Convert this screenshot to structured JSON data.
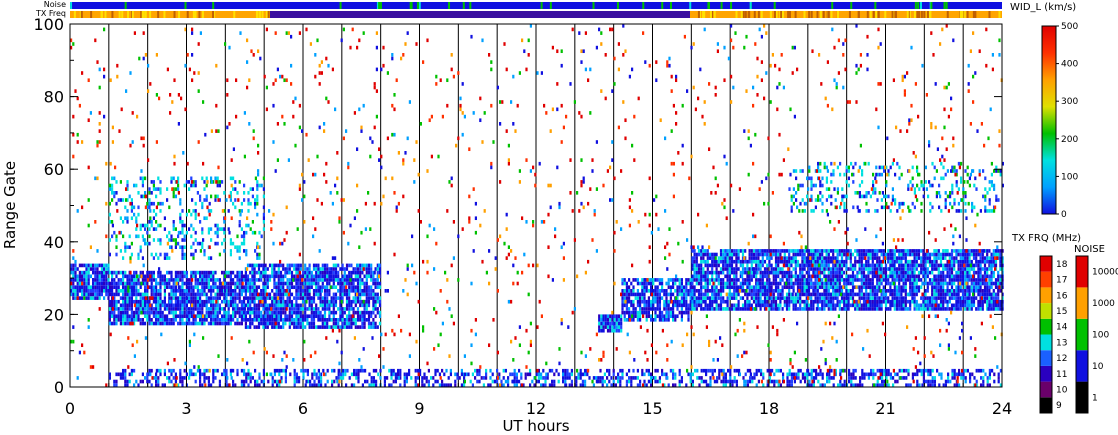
{
  "chart_data": {
    "type": "heatmap",
    "xlabel": "UT hours",
    "ylabel": "Range Gate",
    "xlim": [
      0,
      24
    ],
    "ylim": [
      0,
      100
    ],
    "xticks": [
      "0",
      "3",
      "6",
      "9",
      "12",
      "15",
      "18",
      "21",
      "24"
    ],
    "yticks": [
      "0",
      "20",
      "40",
      "60",
      "80",
      "100"
    ],
    "hour_grid_lines": true,
    "top_strips": [
      {
        "label": "Noise",
        "dominant_color": "#1010e0"
      },
      {
        "label": "TX Freq",
        "dominant_color": "#ffa500"
      }
    ],
    "scatter_regions": [
      {
        "name": "near-range band",
        "x": [
          1.0,
          24.0
        ],
        "gate_range": [
          0,
          5
        ],
        "density": 0.5,
        "color_mix": "blue"
      },
      {
        "name": "band A",
        "x": [
          0.0,
          1.0
        ],
        "gate_range": [
          24,
          34
        ],
        "density": 0.9,
        "color_mix": "blue"
      },
      {
        "name": "band B",
        "x": [
          1.0,
          4.5
        ],
        "gate_range": [
          17,
          32
        ],
        "density": 0.85,
        "color_mix": "blue"
      },
      {
        "name": "band C",
        "x": [
          4.5,
          8.0
        ],
        "gate_range": [
          16,
          34
        ],
        "density": 0.8,
        "color_mix": "blue"
      },
      {
        "name": "band D",
        "x": [
          13.6,
          14.2
        ],
        "gate_range": [
          15,
          20
        ],
        "density": 0.95,
        "color_mix": "blue"
      },
      {
        "name": "band E",
        "x": [
          14.2,
          16.0
        ],
        "gate_range": [
          18,
          30
        ],
        "density": 0.75,
        "color_mix": "blue"
      },
      {
        "name": "band F",
        "x": [
          16.0,
          24.0
        ],
        "gate_range": [
          21,
          38
        ],
        "density": 0.85,
        "color_mix": "blue"
      },
      {
        "name": "high echoes",
        "x": [
          1.0,
          5.0
        ],
        "gate_range": [
          35,
          58
        ],
        "density": 0.25,
        "color_mix": "cyan"
      },
      {
        "name": "high echoes 2",
        "x": [
          18.5,
          24.0
        ],
        "gate_range": [
          48,
          62
        ],
        "density": 0.25,
        "color_mix": "cyan"
      },
      {
        "name": "sparse",
        "x": [
          0.0,
          24.0
        ],
        "gate_range": [
          0,
          100
        ],
        "density": 0.035,
        "color_mix": "red"
      }
    ],
    "colorbars": [
      {
        "title": "WID_L (km/s)",
        "min": 0,
        "max": 500,
        "ticks": [
          "0",
          "100",
          "200",
          "300",
          "400",
          "500"
        ],
        "colors": [
          "#1010e0",
          "#00a0ff",
          "#00e0e0",
          "#00c000",
          "#e0e000",
          "#ffa000",
          "#ff3000",
          "#e00000"
        ]
      },
      {
        "title": "TX FRQ (MHz)",
        "ticks": [
          "9",
          "10",
          "11",
          "12",
          "13",
          "14",
          "15",
          "16",
          "17",
          "18"
        ],
        "colors": [
          "#000000",
          "#6a006a",
          "#2a00c0",
          "#1a60ff",
          "#00e0e0",
          "#00c000",
          "#c0e000",
          "#ffa000",
          "#ff4000",
          "#e00000"
        ]
      },
      {
        "title": "NOISE",
        "ticks": [
          "1",
          "10",
          "100",
          "1000",
          "10000"
        ],
        "colors": [
          "#000000",
          "#1010e0",
          "#00c000",
          "#ffa000",
          "#e00000"
        ]
      }
    ]
  }
}
